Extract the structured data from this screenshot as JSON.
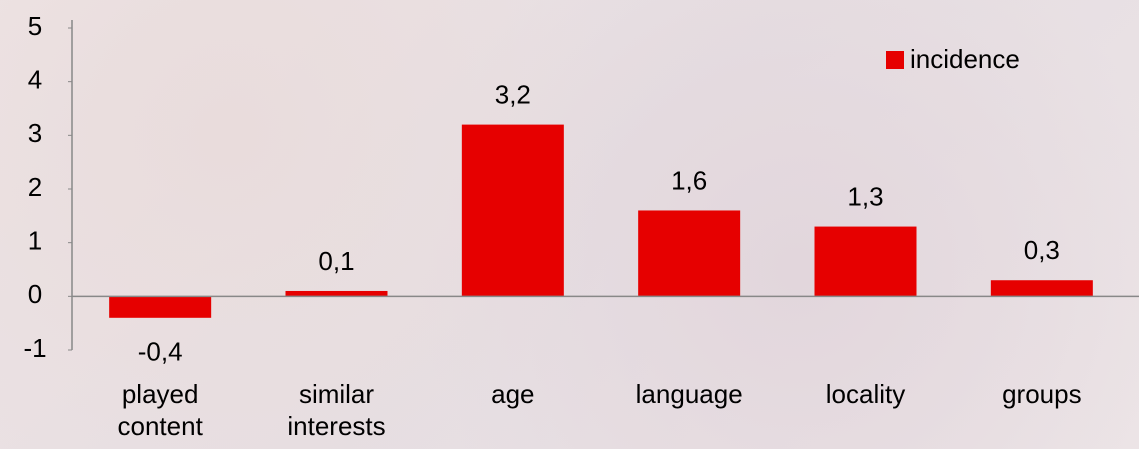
{
  "chart_data": {
    "type": "bar",
    "categories": [
      "played content",
      "similar interests",
      "age",
      "language",
      "locality",
      "groups"
    ],
    "series": [
      {
        "name": "incidence",
        "color": "#e60000",
        "values": [
          -0.4,
          0.1,
          3.2,
          1.6,
          1.3,
          0.3
        ],
        "value_labels": [
          "-0,4",
          "0,1",
          "3,2",
          "1,6",
          "1,3",
          "0,3"
        ]
      }
    ],
    "ylim": [
      -1,
      5
    ],
    "yticks": [
      -1,
      0,
      1,
      2,
      3,
      4,
      5
    ],
    "legend": "top-right"
  }
}
